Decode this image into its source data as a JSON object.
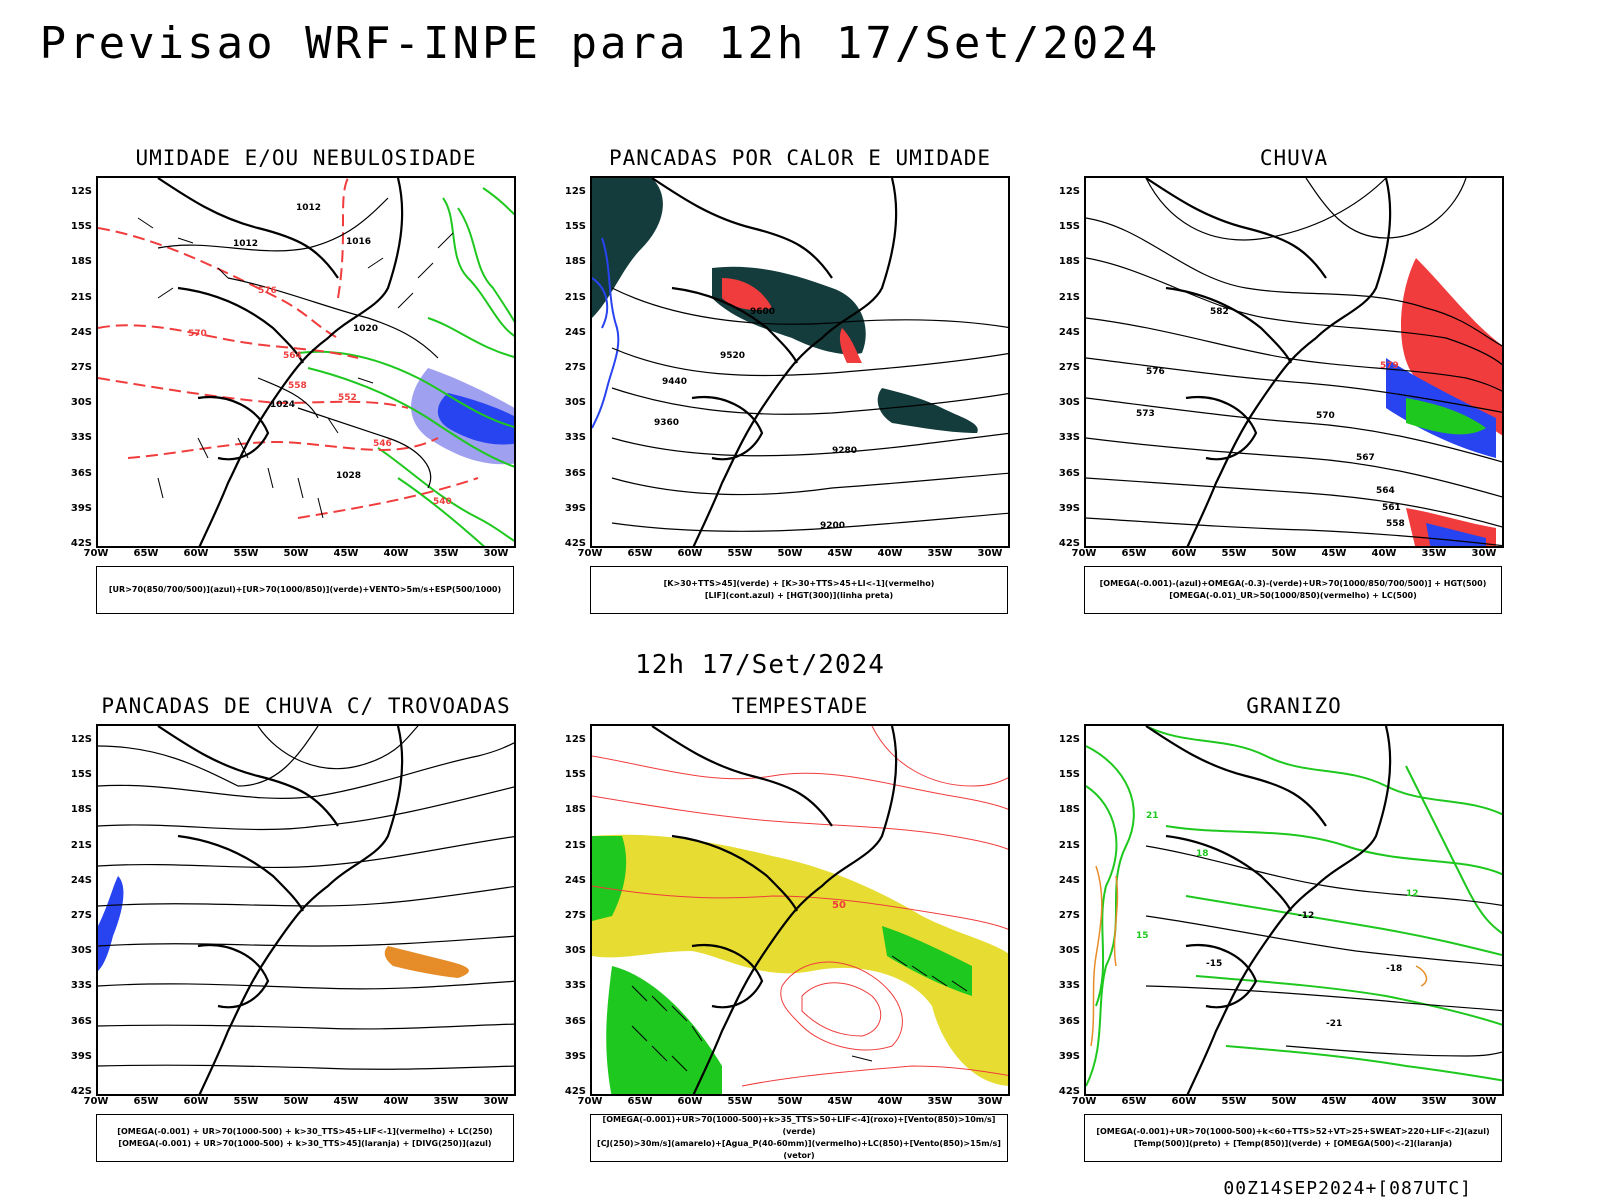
{
  "title": "Previsao WRF-INPE  para 12h 17/Set/2024",
  "middle_title": "12h 17/Set/2024",
  "footer": "00Z14SEP2024+[087UTC]",
  "axes": {
    "lat_labels": [
      "12S",
      "15S",
      "18S",
      "21S",
      "24S",
      "27S",
      "30S",
      "33S",
      "36S",
      "39S",
      "42S"
    ],
    "lon_labels": [
      "70W",
      "65W",
      "60W",
      "55W",
      "50W",
      "45W",
      "40W",
      "35W",
      "30W"
    ]
  },
  "panels": [
    {
      "title": "UMIDADE E/OU NEBULOSIDADE",
      "legend": [
        "[UR>70(850/700/500)](azul)+[UR>70(1000/850)](verde)+VENTO>5m/s+ESP(500/1000)"
      ],
      "labels": [
        "1012",
        "1012",
        "1016",
        "1020",
        "1024",
        "1028",
        "576",
        "570",
        "564",
        "558",
        "552",
        "546",
        "540"
      ]
    },
    {
      "title": "PANCADAS POR CALOR E UMIDADE",
      "legend": [
        "[K>30+TTS>45](verde) + [K>30+TTS>45+LI<-1](vermelho)",
        "[LIF](cont.azul) + [HGT(300)](linha preta)"
      ],
      "labels": [
        "9600",
        "9520",
        "9440",
        "9360",
        "9280",
        "9200"
      ]
    },
    {
      "title": "CHUVA",
      "legend": [
        "[OMEGA(-0.001)-(azul)+OMEGA(-0.3)-(verde)+UR>70(1000/850/700/500)] + HGT(500)",
        "[OMEGA(-0.01)_UR>50(1000/850)(vermelho) + LC(500)"
      ],
      "labels": [
        "582",
        "579",
        "576",
        "573",
        "570",
        "567",
        "564",
        "561",
        "558"
      ]
    },
    {
      "title": "PANCADAS DE CHUVA C/ TROVOADAS",
      "legend": [
        "[OMEGA(-0.001) + UR>70(1000-500) + k>30_TTS>45+LIF<-1](vermelho) + LC(250)",
        "[OMEGA(-0.001) + UR>70(1000-500) + k>30_TTS>45](laranja) + [DIVG(250)](azul)"
      ],
      "labels": []
    },
    {
      "title": "TEMPESTADE",
      "legend": [
        "[OMEGA(-0.001)+UR>70(1000-500)+k>35_TTS>50+LIF<-4](roxo)+[Vento(850)>10m/s](verde)",
        "[CJ(250)>30m/s](amarelo)+[Agua_P(40-60mm)](vermelho)+LC(850)+[Vento(850)>15m/s](vetor)"
      ],
      "labels": [
        "50"
      ]
    },
    {
      "title": "GRANIZO",
      "legend": [
        "[OMEGA(-0.001)+UR>70(1000-500)+k<60+TTS>52+VT>25+SWEAT>220+LIF<-2](azul)",
        "[Temp(500)](preto) + [Temp(850)](verde) + [OMEGA(500)<-2](laranja)"
      ],
      "labels": [
        "-12",
        "-15",
        "-18",
        "-21",
        "12",
        "15",
        "18",
        "21"
      ]
    }
  ],
  "colors": {
    "red": "#f03c3c",
    "green": "#1ec81e",
    "blue": "#2844f0",
    "lightblue": "#a0a0f0",
    "dark": "#143c3c",
    "yellow": "#e6dc32",
    "orange": "#e68c28"
  }
}
